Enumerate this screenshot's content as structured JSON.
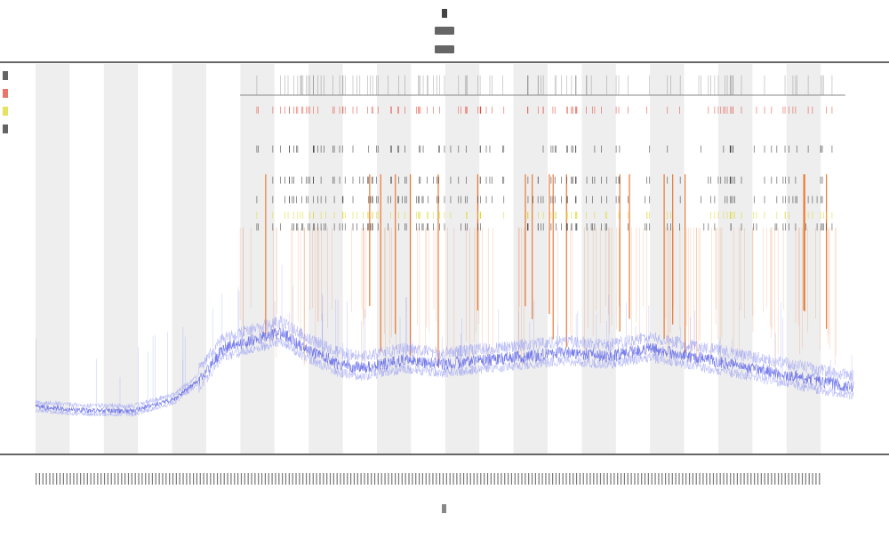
{
  "chart_data": {
    "type": "line",
    "title": "",
    "xlabel": "",
    "ylabel": "",
    "grid": false,
    "shaded_bands": 12,
    "x_tick_count": 230,
    "colors": {
      "signal": "#4a52e6",
      "signal_light": "#8e93f3",
      "event_lines": "#e86a20",
      "tick_black": "#222222",
      "tick_yellow": "#d9d619",
      "tick_red": "#e23a2a",
      "band_fill": "#eeeeee",
      "axis": "#333333"
    },
    "series": [
      {
        "name": "",
        "baseline_profile": [
          [
            0,
            0.88
          ],
          [
            0.06,
            0.89
          ],
          [
            0.12,
            0.89
          ],
          [
            0.17,
            0.86
          ],
          [
            0.2,
            0.81
          ],
          [
            0.23,
            0.73
          ],
          [
            0.3,
            0.69
          ],
          [
            0.33,
            0.73
          ],
          [
            0.37,
            0.77
          ],
          [
            0.4,
            0.78
          ],
          [
            0.45,
            0.76
          ],
          [
            0.5,
            0.77
          ],
          [
            0.55,
            0.76
          ],
          [
            0.6,
            0.75
          ],
          [
            0.65,
            0.74
          ],
          [
            0.7,
            0.75
          ],
          [
            0.75,
            0.73
          ],
          [
            0.8,
            0.75
          ],
          [
            0.85,
            0.77
          ],
          [
            0.9,
            0.79
          ],
          [
            0.95,
            0.81
          ],
          [
            1,
            0.83
          ]
        ]
      }
    ],
    "event_line_regions": [
      [
        0.25,
        0.98
      ]
    ],
    "tick_rows": [
      {
        "color": "tick_black",
        "y_frac": 0.02
      },
      {
        "color": "tick_red",
        "y_frac": 0.1
      },
      {
        "color": "tick_black",
        "y_frac": 0.2
      },
      {
        "color": "tick_black",
        "y_frac": 0.28
      },
      {
        "color": "tick_black",
        "y_frac": 0.33
      },
      {
        "color": "tick_yellow",
        "y_frac": 0.37
      },
      {
        "color": "tick_black",
        "y_frac": 0.4
      }
    ],
    "legend": {
      "placement": "top-left",
      "swatches": [
        "tick_black",
        "tick_red",
        "tick_yellow",
        "tick_black"
      ]
    }
  }
}
